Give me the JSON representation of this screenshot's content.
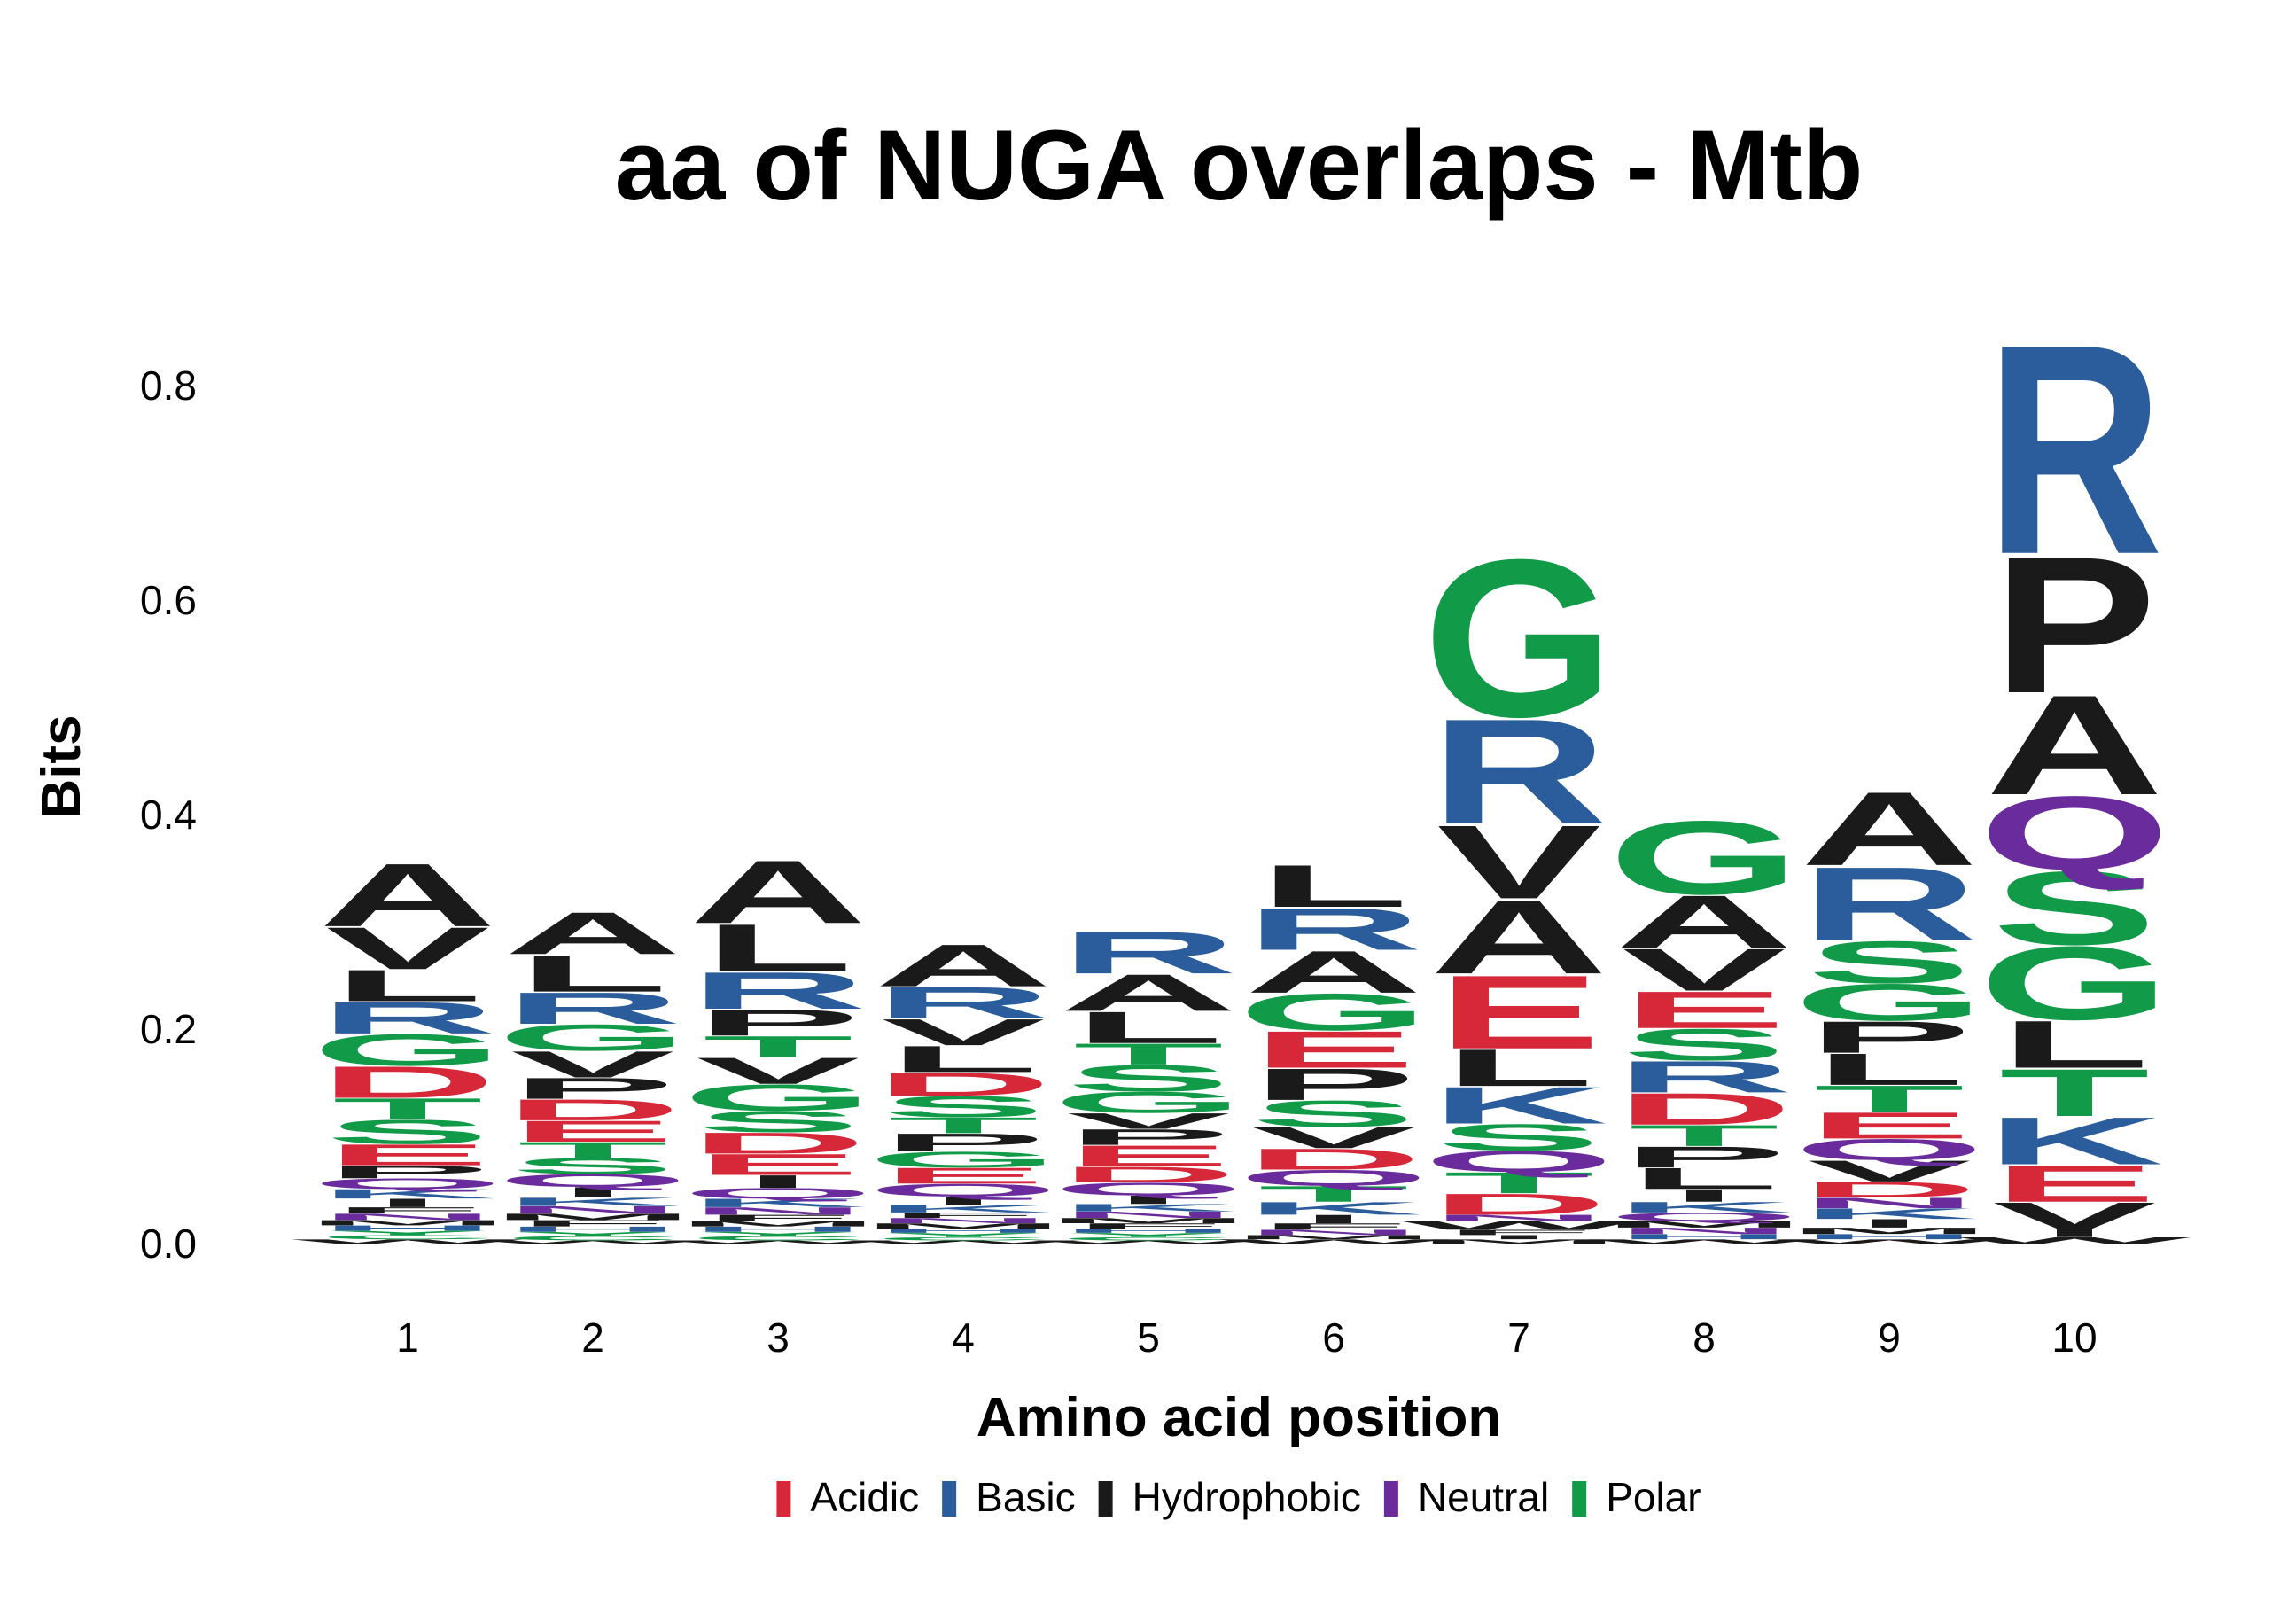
{
  "chart_data": {
    "type": "sequence-logo",
    "title": "aa of NUGA overlaps - Mtb",
    "xlabel": "Amino acid position",
    "ylabel": "Bits",
    "ylim": [
      0,
      0.9
    ],
    "yticks": [
      "0.0",
      "0.2",
      "0.4",
      "0.6",
      "0.8"
    ],
    "ytick_values": [
      0,
      0.2,
      0.4,
      0.6,
      0.8
    ],
    "categories": [
      "1",
      "2",
      "3",
      "4",
      "5",
      "6",
      "7",
      "8",
      "9",
      "10"
    ],
    "legend": {
      "placement": "bottom",
      "entries": [
        {
          "label": "Acidic",
          "color": "#d62839"
        },
        {
          "label": "Basic",
          "color": "#2b5d9c"
        },
        {
          "label": "Hydrophobic",
          "color": "#1a1a1a"
        },
        {
          "label": "Neutral",
          "color": "#6a2c9c"
        },
        {
          "label": "Polar",
          "color": "#119a48"
        }
      ]
    },
    "class_of_letter": {
      "D": "Acidic",
      "E": "Acidic",
      "R": "Basic",
      "K": "Basic",
      "H": "Basic",
      "A": "Hydrophobic",
      "V": "Hydrophobic",
      "L": "Hydrophobic",
      "I": "Hydrophobic",
      "P": "Hydrophobic",
      "F": "Hydrophobic",
      "M": "Hydrophobic",
      "W": "Hydrophobic",
      "Q": "Neutral",
      "N": "Neutral",
      "G": "Polar",
      "S": "Polar",
      "T": "Polar",
      "Y": "Polar",
      "C": "Polar"
    },
    "stacks": [
      {
        "position": "1",
        "letters": [
          {
            "letter": "W",
            "bits": 0.004
          },
          {
            "letter": "C",
            "bits": 0.004
          },
          {
            "letter": "Y",
            "bits": 0.004
          },
          {
            "letter": "H",
            "bits": 0.005
          },
          {
            "letter": "M",
            "bits": 0.005
          },
          {
            "letter": "N",
            "bits": 0.006
          },
          {
            "letter": "F",
            "bits": 0.006
          },
          {
            "letter": "I",
            "bits": 0.008
          },
          {
            "letter": "K",
            "bits": 0.009
          },
          {
            "letter": "Q",
            "bits": 0.01
          },
          {
            "letter": "P",
            "bits": 0.012
          },
          {
            "letter": "E",
            "bits": 0.02
          },
          {
            "letter": "S",
            "bits": 0.023
          },
          {
            "letter": "T",
            "bits": 0.02
          },
          {
            "letter": "D",
            "bits": 0.03
          },
          {
            "letter": "G",
            "bits": 0.03
          },
          {
            "letter": "R",
            "bits": 0.03
          },
          {
            "letter": "L",
            "bits": 0.03
          },
          {
            "letter": "V",
            "bits": 0.04
          },
          {
            "letter": "A",
            "bits": 0.06
          }
        ]
      },
      {
        "position": "2",
        "letters": [
          {
            "letter": "W",
            "bits": 0.003
          },
          {
            "letter": "C",
            "bits": 0.004
          },
          {
            "letter": "Y",
            "bits": 0.004
          },
          {
            "letter": "H",
            "bits": 0.005
          },
          {
            "letter": "F",
            "bits": 0.006
          },
          {
            "letter": "M",
            "bits": 0.006
          },
          {
            "letter": "N",
            "bits": 0.007
          },
          {
            "letter": "K",
            "bits": 0.008
          },
          {
            "letter": "I",
            "bits": 0.01
          },
          {
            "letter": "Q",
            "bits": 0.012
          },
          {
            "letter": "S",
            "bits": 0.015
          },
          {
            "letter": "T",
            "bits": 0.015
          },
          {
            "letter": "E",
            "bits": 0.02
          },
          {
            "letter": "D",
            "bits": 0.02
          },
          {
            "letter": "P",
            "bits": 0.02
          },
          {
            "letter": "V",
            "bits": 0.025
          },
          {
            "letter": "G",
            "bits": 0.025
          },
          {
            "letter": "R",
            "bits": 0.03
          },
          {
            "letter": "L",
            "bits": 0.035
          },
          {
            "letter": "A",
            "bits": 0.04
          }
        ]
      },
      {
        "position": "3",
        "letters": [
          {
            "letter": "W",
            "bits": 0.003
          },
          {
            "letter": "C",
            "bits": 0.004
          },
          {
            "letter": "Y",
            "bits": 0.004
          },
          {
            "letter": "H",
            "bits": 0.005
          },
          {
            "letter": "M",
            "bits": 0.005
          },
          {
            "letter": "F",
            "bits": 0.006
          },
          {
            "letter": "N",
            "bits": 0.007
          },
          {
            "letter": "K",
            "bits": 0.008
          },
          {
            "letter": "Q",
            "bits": 0.01
          },
          {
            "letter": "I",
            "bits": 0.012
          },
          {
            "letter": "E",
            "bits": 0.02
          },
          {
            "letter": "D",
            "bits": 0.02
          },
          {
            "letter": "S",
            "bits": 0.02
          },
          {
            "letter": "G",
            "bits": 0.025
          },
          {
            "letter": "V",
            "bits": 0.025
          },
          {
            "letter": "T",
            "bits": 0.02
          },
          {
            "letter": "P",
            "bits": 0.025
          },
          {
            "letter": "R",
            "bits": 0.035
          },
          {
            "letter": "L",
            "bits": 0.045
          },
          {
            "letter": "A",
            "bits": 0.06
          }
        ]
      },
      {
        "position": "4",
        "letters": [
          {
            "letter": "W",
            "bits": 0.003
          },
          {
            "letter": "C",
            "bits": 0.003
          },
          {
            "letter": "Y",
            "bits": 0.004
          },
          {
            "letter": "H",
            "bits": 0.004
          },
          {
            "letter": "M",
            "bits": 0.005
          },
          {
            "letter": "N",
            "bits": 0.005
          },
          {
            "letter": "F",
            "bits": 0.005
          },
          {
            "letter": "K",
            "bits": 0.007
          },
          {
            "letter": "I",
            "bits": 0.008
          },
          {
            "letter": "Q",
            "bits": 0.012
          },
          {
            "letter": "E",
            "bits": 0.015
          },
          {
            "letter": "G",
            "bits": 0.015
          },
          {
            "letter": "P",
            "bits": 0.017
          },
          {
            "letter": "T",
            "bits": 0.015
          },
          {
            "letter": "S",
            "bits": 0.02
          },
          {
            "letter": "D",
            "bits": 0.022
          },
          {
            "letter": "L",
            "bits": 0.025
          },
          {
            "letter": "V",
            "bits": 0.025
          },
          {
            "letter": "R",
            "bits": 0.03
          },
          {
            "letter": "A",
            "bits": 0.04
          }
        ]
      },
      {
        "position": "5",
        "letters": [
          {
            "letter": "W",
            "bits": 0.003
          },
          {
            "letter": "C",
            "bits": 0.003
          },
          {
            "letter": "Y",
            "bits": 0.004
          },
          {
            "letter": "H",
            "bits": 0.004
          },
          {
            "letter": "F",
            "bits": 0.005
          },
          {
            "letter": "M",
            "bits": 0.005
          },
          {
            "letter": "N",
            "bits": 0.006
          },
          {
            "letter": "K",
            "bits": 0.007
          },
          {
            "letter": "I",
            "bits": 0.008
          },
          {
            "letter": "Q",
            "bits": 0.012
          },
          {
            "letter": "D",
            "bits": 0.015
          },
          {
            "letter": "E",
            "bits": 0.02
          },
          {
            "letter": "P",
            "bits": 0.015
          },
          {
            "letter": "V",
            "bits": 0.015
          },
          {
            "letter": "G",
            "bits": 0.02
          },
          {
            "letter": "S",
            "bits": 0.025
          },
          {
            "letter": "T",
            "bits": 0.02
          },
          {
            "letter": "L",
            "bits": 0.03
          },
          {
            "letter": "A",
            "bits": 0.035
          },
          {
            "letter": "R",
            "bits": 0.04
          }
        ]
      },
      {
        "position": "6",
        "letters": [
          {
            "letter": "W",
            "bits": 0.004
          },
          {
            "letter": "M",
            "bits": 0.004
          },
          {
            "letter": "N",
            "bits": 0.005
          },
          {
            "letter": "F",
            "bits": 0.006
          },
          {
            "letter": "I",
            "bits": 0.008
          },
          {
            "letter": "K",
            "bits": 0.012
          },
          {
            "letter": "T",
            "bits": 0.015
          },
          {
            "letter": "Q",
            "bits": 0.015
          },
          {
            "letter": "D",
            "bits": 0.02
          },
          {
            "letter": "V",
            "bits": 0.02
          },
          {
            "letter": "S",
            "bits": 0.025
          },
          {
            "letter": "P",
            "bits": 0.03
          },
          {
            "letter": "E",
            "bits": 0.035
          },
          {
            "letter": "G",
            "bits": 0.035
          },
          {
            "letter": "A",
            "bits": 0.04
          },
          {
            "letter": "R",
            "bits": 0.04
          },
          {
            "letter": "L",
            "bits": 0.04
          }
        ]
      },
      {
        "position": "7",
        "letters": [
          {
            "letter": "M",
            "bits": 0.004
          },
          {
            "letter": "I",
            "bits": 0.004
          },
          {
            "letter": "F",
            "bits": 0.005
          },
          {
            "letter": "W",
            "bits": 0.008
          },
          {
            "letter": "N",
            "bits": 0.006
          },
          {
            "letter": "D",
            "bits": 0.02
          },
          {
            "letter": "T",
            "bits": 0.02
          },
          {
            "letter": "Q",
            "bits": 0.02
          },
          {
            "letter": "S",
            "bits": 0.025
          },
          {
            "letter": "K",
            "bits": 0.035
          },
          {
            "letter": "L",
            "bits": 0.035
          },
          {
            "letter": "E",
            "bits": 0.07
          },
          {
            "letter": "A",
            "bits": 0.07
          },
          {
            "letter": "V",
            "bits": 0.07
          },
          {
            "letter": "R",
            "bits": 0.1
          },
          {
            "letter": "G",
            "bits": 0.15
          }
        ]
      },
      {
        "position": "8",
        "letters": [
          {
            "letter": "W",
            "bits": 0.004
          },
          {
            "letter": "H",
            "bits": 0.005
          },
          {
            "letter": "N",
            "bits": 0.006
          },
          {
            "letter": "M",
            "bits": 0.006
          },
          {
            "letter": "Q",
            "bits": 0.008
          },
          {
            "letter": "K",
            "bits": 0.01
          },
          {
            "letter": "I",
            "bits": 0.012
          },
          {
            "letter": "L",
            "bits": 0.02
          },
          {
            "letter": "P",
            "bits": 0.02
          },
          {
            "letter": "T",
            "bits": 0.02
          },
          {
            "letter": "D",
            "bits": 0.03
          },
          {
            "letter": "R",
            "bits": 0.03
          },
          {
            "letter": "S",
            "bits": 0.03
          },
          {
            "letter": "E",
            "bits": 0.035
          },
          {
            "letter": "V",
            "bits": 0.04
          },
          {
            "letter": "A",
            "bits": 0.05
          },
          {
            "letter": "G",
            "bits": 0.07
          }
        ]
      },
      {
        "position": "9",
        "letters": [
          {
            "letter": "W",
            "bits": 0.004
          },
          {
            "letter": "H",
            "bits": 0.005
          },
          {
            "letter": "M",
            "bits": 0.006
          },
          {
            "letter": "I",
            "bits": 0.008
          },
          {
            "letter": "K",
            "bits": 0.01
          },
          {
            "letter": "N",
            "bits": 0.01
          },
          {
            "letter": "D",
            "bits": 0.015
          },
          {
            "letter": "V",
            "bits": 0.02
          },
          {
            "letter": "Q",
            "bits": 0.02
          },
          {
            "letter": "E",
            "bits": 0.025
          },
          {
            "letter": "T",
            "bits": 0.025
          },
          {
            "letter": "L",
            "bits": 0.03
          },
          {
            "letter": "P",
            "bits": 0.03
          },
          {
            "letter": "G",
            "bits": 0.035
          },
          {
            "letter": "S",
            "bits": 0.04
          },
          {
            "letter": "R",
            "bits": 0.07
          },
          {
            "letter": "A",
            "bits": 0.07
          }
        ]
      },
      {
        "position": "10",
        "letters": [
          {
            "letter": "W",
            "bits": 0.006
          },
          {
            "letter": "I",
            "bits": 0.008
          },
          {
            "letter": "V",
            "bits": 0.025
          },
          {
            "letter": "E",
            "bits": 0.035
          },
          {
            "letter": "K",
            "bits": 0.045
          },
          {
            "letter": "T",
            "bits": 0.045
          },
          {
            "letter": "L",
            "bits": 0.045
          },
          {
            "letter": "G",
            "bits": 0.07
          },
          {
            "letter": "S",
            "bits": 0.07
          },
          {
            "letter": "Q",
            "bits": 0.07
          },
          {
            "letter": "A",
            "bits": 0.095
          },
          {
            "letter": "P",
            "bits": 0.13
          },
          {
            "letter": "R",
            "bits": 0.2
          }
        ]
      }
    ]
  }
}
